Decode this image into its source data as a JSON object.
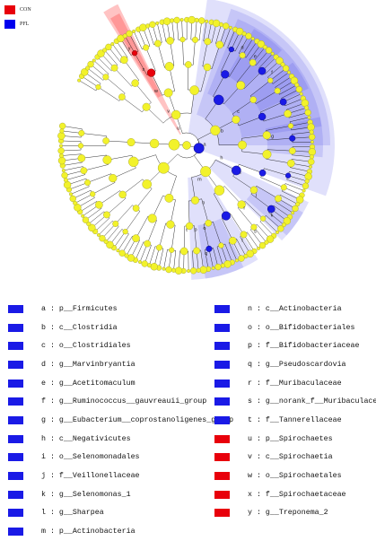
{
  "top_legend": [
    {
      "label": "CON",
      "color": "#e8000b"
    },
    {
      "label": "PFL",
      "color": "#0000ee"
    }
  ],
  "colors": {
    "con": "#e8000b",
    "pfl": "#1a1ae6",
    "node": "#f2f22b",
    "node_edge": "#9a9a2a",
    "branch": "#000000"
  },
  "cladogram": {
    "clade_labels": [
      "a",
      "b",
      "c",
      "d",
      "e",
      "f",
      "g",
      "h",
      "i",
      "j",
      "k",
      "l",
      "m",
      "n",
      "o",
      "p",
      "q",
      "r",
      "s",
      "t",
      "u",
      "v",
      "w",
      "x",
      "y"
    ]
  },
  "legend_left": [
    {
      "key": "a",
      "name": "p__Firmicutes",
      "group": "PFL"
    },
    {
      "key": "b",
      "name": "c__Clostridia",
      "group": "PFL"
    },
    {
      "key": "c",
      "name": "o__Clostridiales",
      "group": "PFL"
    },
    {
      "key": "d",
      "name": "g__Marvinbryantia",
      "group": "PFL"
    },
    {
      "key": "e",
      "name": "g__Acetitomaculum",
      "group": "PFL"
    },
    {
      "key": "f",
      "name": "g__Ruminococcus__gauvreauii_group",
      "group": "PFL"
    },
    {
      "key": "g",
      "name": "g__Eubacterium__coprostanoligenes_group",
      "group": "PFL"
    },
    {
      "key": "h",
      "name": "c__Negativicutes",
      "group": "PFL"
    },
    {
      "key": "i",
      "name": "o__Selenomonadales",
      "group": "PFL"
    },
    {
      "key": "j",
      "name": "f__Veillonellaceae",
      "group": "PFL"
    },
    {
      "key": "k",
      "name": "g__Selenomonas_1",
      "group": "PFL"
    },
    {
      "key": "l",
      "name": "g__Sharpea",
      "group": "PFL"
    },
    {
      "key": "m",
      "name": "p__Actinobacteria",
      "group": "PFL"
    }
  ],
  "legend_right": [
    {
      "key": "n",
      "name": "c__Actinobacteria",
      "group": "PFL"
    },
    {
      "key": "o",
      "name": "o__Bifidobacteriales",
      "group": "PFL"
    },
    {
      "key": "p",
      "name": "f__Bifidobacteriaceae",
      "group": "PFL"
    },
    {
      "key": "q",
      "name": "g__Pseudoscardovia",
      "group": "PFL"
    },
    {
      "key": "r",
      "name": "f__Muribaculaceae",
      "group": "PFL"
    },
    {
      "key": "s",
      "name": "g__norank_f__Muribaculaceae",
      "group": "PFL"
    },
    {
      "key": "t",
      "name": "f__Tannerellaceae",
      "group": "PFL"
    },
    {
      "key": "u",
      "name": "p__Spirochaetes",
      "group": "CON"
    },
    {
      "key": "v",
      "name": "c__Spirochaetia",
      "group": "CON"
    },
    {
      "key": "w",
      "name": "o__Spirochaetales",
      "group": "CON"
    },
    {
      "key": "x",
      "name": "f__Spirochaetaceae",
      "group": "CON"
    },
    {
      "key": "y",
      "name": "g__Treponema_2",
      "group": "CON"
    }
  ]
}
